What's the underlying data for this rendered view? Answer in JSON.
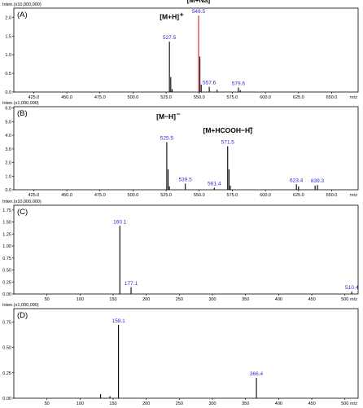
{
  "figure": {
    "background": "#ffffff"
  },
  "chart_data": [
    {
      "type": "bar",
      "panel_label": "(A)",
      "intensity_label": "Inten.(x10,000,000)",
      "x_unit": "m/z",
      "xlim": [
        410,
        670
      ],
      "ylim": [
        0,
        2.25
      ],
      "x_ticks": [
        425.0,
        450.0,
        475.0,
        500.0,
        525.0,
        550.0,
        575.0,
        600.0,
        625.0,
        650.0
      ],
      "x_tick_labels": [
        "425.0",
        "450.0",
        "475.0",
        "500.0",
        "525.0",
        "550.0",
        "575.0",
        "600.0",
        "625.0",
        "650.0"
      ],
      "y_ticks": [
        0,
        0.5,
        1.0,
        1.5,
        2.0
      ],
      "y_tick_labels": [
        "0.0",
        "0.5",
        "1.0",
        "1.5",
        "2.0"
      ],
      "peaks": [
        {
          "x": 527.5,
          "y": 1.35,
          "label": "527.5",
          "color": "#000000"
        },
        {
          "x": 528.5,
          "y": 0.4,
          "label": "",
          "color": "#000000"
        },
        {
          "x": 529.5,
          "y": 0.08,
          "label": "",
          "color": "#000000"
        },
        {
          "x": 549.5,
          "y": 2.05,
          "label": "549.5",
          "color": "#e0201b"
        },
        {
          "x": 550.5,
          "y": 0.95,
          "label": "",
          "color": "#000000"
        },
        {
          "x": 551.5,
          "y": 0.2,
          "label": "",
          "color": "#000000"
        },
        {
          "x": 557.6,
          "y": 0.14,
          "label": "557.6",
          "color": "#000000"
        },
        {
          "x": 563.5,
          "y": 0.06,
          "label": "",
          "color": "#000000"
        },
        {
          "x": 579.6,
          "y": 0.12,
          "label": "579.6",
          "color": "#000000"
        },
        {
          "x": 581.0,
          "y": 0.05,
          "label": "",
          "color": "#000000"
        }
      ],
      "annotations": [
        {
          "text": "[M+H]",
          "charge": "+",
          "x": 527.5,
          "y": 1.95
        },
        {
          "text": "[M+Na]",
          "charge": "+",
          "x": 549.5,
          "y": 2.4
        }
      ]
    },
    {
      "type": "bar",
      "panel_label": "(B)",
      "intensity_label": "Inten.(x1,000,000)",
      "x_unit": "m/z",
      "xlim": [
        410,
        670
      ],
      "ylim": [
        0,
        6.1
      ],
      "x_ticks": [
        425.0,
        450.0,
        475.0,
        500.0,
        525.0,
        550.0,
        575.0,
        600.0,
        625.0,
        650.0
      ],
      "x_tick_labels": [
        "425.0",
        "450.0",
        "475.0",
        "500.0",
        "525.0",
        "550.0",
        "575.0",
        "600.0",
        "625.0",
        "650.0"
      ],
      "y_ticks": [
        0,
        1,
        2,
        3,
        4,
        5,
        6
      ],
      "y_tick_labels": [
        "0.0",
        "1.0",
        "2.0",
        "3.0",
        "4.0",
        "5.0",
        "6.0"
      ],
      "peaks": [
        {
          "x": 525.5,
          "y": 3.5,
          "label": "525.5",
          "color": "#000000"
        },
        {
          "x": 526.5,
          "y": 1.5,
          "label": "",
          "color": "#000000"
        },
        {
          "x": 527.5,
          "y": 0.25,
          "label": "",
          "color": "#000000"
        },
        {
          "x": 539.5,
          "y": 0.45,
          "label": "539.5",
          "color": "#000000"
        },
        {
          "x": 561.4,
          "y": 0.15,
          "label": "561.4",
          "color": "#000000"
        },
        {
          "x": 571.5,
          "y": 3.2,
          "label": "571.5",
          "color": "#000000"
        },
        {
          "x": 572.5,
          "y": 1.5,
          "label": "",
          "color": "#000000"
        },
        {
          "x": 573.5,
          "y": 0.3,
          "label": "",
          "color": "#000000"
        },
        {
          "x": 623.4,
          "y": 0.4,
          "label": "623.4",
          "color": "#000000"
        },
        {
          "x": 625.0,
          "y": 0.25,
          "label": "",
          "color": "#000000"
        },
        {
          "x": 637.5,
          "y": 0.3,
          "label": "",
          "color": "#000000"
        },
        {
          "x": 639.3,
          "y": 0.35,
          "label": "639.3",
          "color": "#000000"
        }
      ],
      "annotations": [
        {
          "text": "[M−H]",
          "charge": "−",
          "x": 525.0,
          "y": 5.2
        },
        {
          "text": "[M+HCOOH−H]",
          "charge": "−",
          "x": 571.5,
          "y": 4.2
        }
      ]
    },
    {
      "type": "bar",
      "panel_label": "(C)",
      "intensity_label": "Inten.(x10,000,000)",
      "x_unit": "m/z",
      "xlim": [
        0,
        520
      ],
      "ylim": [
        0,
        1.85
      ],
      "x_ticks": [
        50,
        100,
        150,
        200,
        250,
        300,
        350,
        400,
        450,
        500
      ],
      "x_tick_labels": [
        "50",
        "100",
        "150",
        "200",
        "250",
        "300",
        "350",
        "400",
        "450",
        "500"
      ],
      "y_ticks": [
        0,
        0.25,
        0.5,
        0.75,
        1.0,
        1.25,
        1.5,
        1.75
      ],
      "y_tick_labels": [
        "0.00",
        "0.25",
        "0.50",
        "0.75",
        "1.00",
        "1.25",
        "1.50",
        "1.75"
      ],
      "peaks": [
        {
          "x": 160.1,
          "y": 1.42,
          "label": "160.1",
          "color": "#000000"
        },
        {
          "x": 177.1,
          "y": 0.14,
          "label": "177.1",
          "color": "#000000"
        },
        {
          "x": 510.4,
          "y": 0.05,
          "label": "510.4",
          "color": "#000000"
        }
      ],
      "annotations": []
    },
    {
      "type": "bar",
      "panel_label": "(D)",
      "intensity_label": "Inten.(x1,000,000)",
      "x_unit": "m/z",
      "xlim": [
        0,
        520
      ],
      "ylim": [
        0,
        0.88
      ],
      "x_ticks": [
        50,
        100,
        150,
        200,
        250,
        300,
        350,
        400,
        450,
        500
      ],
      "x_tick_labels": [
        "50",
        "100",
        "150",
        "200",
        "250",
        "300",
        "350",
        "400",
        "450",
        "500"
      ],
      "y_ticks": [
        0,
        0.25,
        0.5,
        0.75
      ],
      "y_tick_labels": [
        "0.00",
        "0.25",
        "0.50",
        "0.75"
      ],
      "peaks": [
        {
          "x": 131.0,
          "y": 0.04,
          "label": "",
          "color": "#000000"
        },
        {
          "x": 145.0,
          "y": 0.02,
          "label": "",
          "color": "#000000"
        },
        {
          "x": 158.1,
          "y": 0.72,
          "label": "158.1",
          "color": "#000000"
        },
        {
          "x": 366.4,
          "y": 0.2,
          "label": "366.4",
          "color": "#000000"
        }
      ],
      "annotations": []
    }
  ]
}
